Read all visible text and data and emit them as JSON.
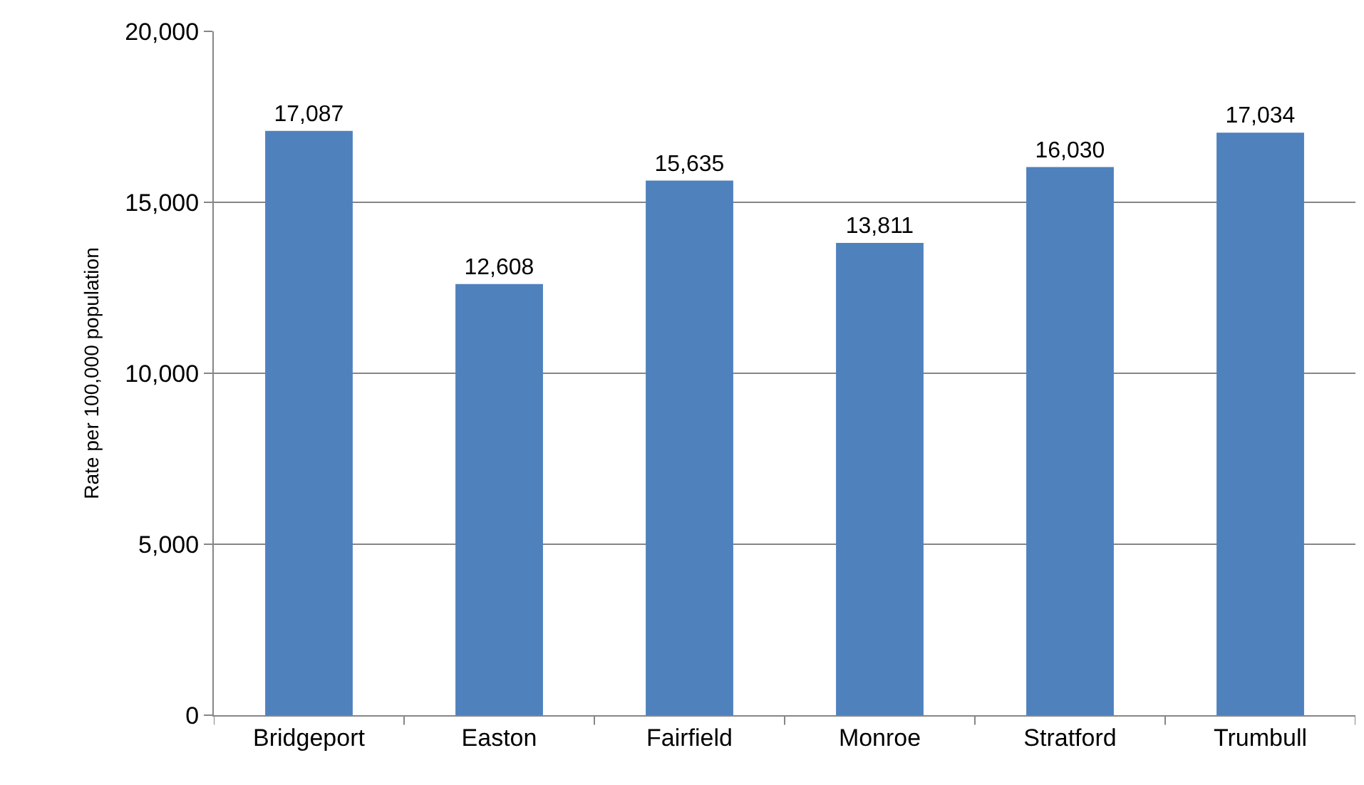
{
  "chart_data": {
    "type": "bar",
    "ylabel": "Rate per 100,000 population",
    "categories": [
      "Bridgeport",
      "Easton",
      "Fairfield",
      "Monroe",
      "Stratford",
      "Trumbull"
    ],
    "values": [
      17087,
      12608,
      15635,
      13811,
      16030,
      17034
    ],
    "value_labels": [
      "17,087",
      "12,608",
      "15,635",
      "13,811",
      "16,030",
      "17,034"
    ],
    "color": "#4f81bd",
    "ylim": [
      0,
      20000
    ],
    "yticks": [
      0,
      {
        "value": 5000,
        "label": "5,000"
      },
      {
        "value": 10000,
        "label": "10,000"
      },
      {
        "value": 15000,
        "label": "15,000"
      },
      {
        "value": 20000,
        "label": "20,000"
      }
    ],
    "grid": "y"
  }
}
